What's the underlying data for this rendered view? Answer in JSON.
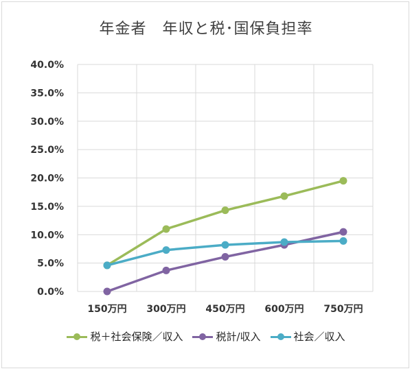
{
  "chart_data": {
    "type": "line",
    "title": "年金者　年収と税･国保負担率",
    "categories": [
      "150万円",
      "300万円",
      "450万円",
      "600万円",
      "750万円"
    ],
    "y_ticks": [
      "0.0%",
      "5.0%",
      "10.0%",
      "15.0%",
      "20.0%",
      "25.0%",
      "30.0%",
      "35.0%",
      "40.0%"
    ],
    "ylim": [
      0,
      40
    ],
    "grid": true,
    "legend_position": "bottom",
    "series": [
      {
        "name": "税＋社会保険／収入",
        "color": "#9bbb59",
        "values": [
          4.6,
          11.0,
          14.3,
          16.8,
          19.5
        ]
      },
      {
        "name": "税計/収入",
        "color": "#8064a2",
        "values": [
          0.0,
          3.7,
          6.1,
          8.2,
          10.5
        ]
      },
      {
        "name": "社会／収入",
        "color": "#4bacc6",
        "values": [
          4.6,
          7.3,
          8.2,
          8.7,
          8.9
        ]
      }
    ]
  }
}
